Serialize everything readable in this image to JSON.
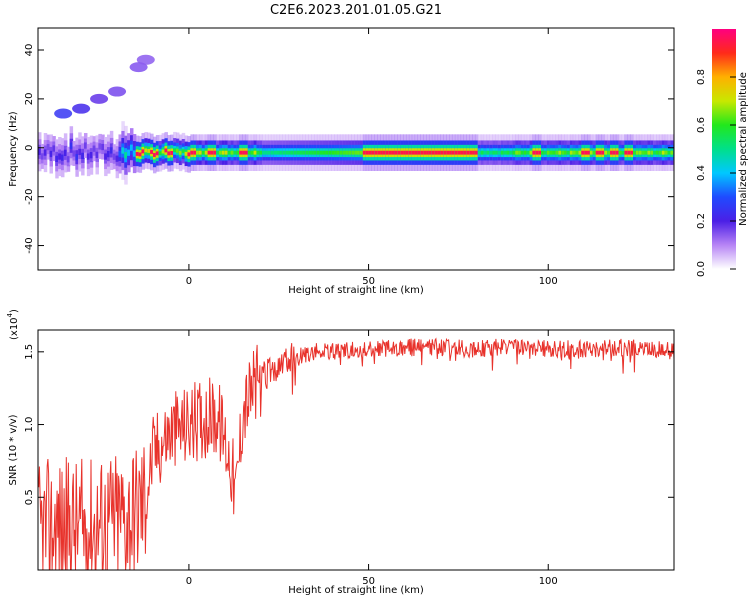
{
  "title": "C2E6.2023.201.01.05.G21",
  "colors": {
    "snr_line": "#e8322b",
    "axis": "#000000",
    "colorbar_stops": [
      "#ffffff",
      "#b784f5",
      "#4b1fe6",
      "#1f4bff",
      "#00c8ff",
      "#00e08a",
      "#22e81c",
      "#c8e800",
      "#ffb000",
      "#ff2a1a",
      "#ff0080"
    ]
  },
  "chart_data": [
    {
      "type": "heatmap",
      "panel": "spectrogram",
      "xlabel": "Height of straight line (km)",
      "ylabel": "Frequency (Hz)",
      "xlim": [
        -42,
        135
      ],
      "ylim": [
        -50,
        49
      ],
      "xticks": [
        0,
        50,
        100
      ],
      "yticks": [
        40,
        20,
        0,
        -20,
        -40
      ],
      "colorbar": {
        "label": "Normalized spectral amplitude",
        "range": [
          0.0,
          1.0
        ],
        "ticks": [
          "0.0",
          "0.2",
          "0.4",
          "0.6",
          "0.8"
        ]
      },
      "dominant_band": {
        "frequency_center_hz": -2,
        "peak_segment_km": [
          48,
          80
        ],
        "secondary_peaks_km": [
          -14,
          -10,
          -6,
          0,
          6,
          15,
          96,
          110,
          114,
          118,
          122
        ]
      },
      "scatter_blobs": [
        {
          "x": -35,
          "y": 14,
          "amp": 0.15
        },
        {
          "x": -30,
          "y": 16,
          "amp": 0.12
        },
        {
          "x": -25,
          "y": 20,
          "amp": 0.08
        },
        {
          "x": -20,
          "y": 23,
          "amp": 0.06
        },
        {
          "x": -14,
          "y": 33,
          "amp": 0.05
        },
        {
          "x": -12,
          "y": 36,
          "amp": 0.04
        }
      ]
    },
    {
      "type": "line",
      "panel": "snr",
      "xlabel": "Height of straight line (km)",
      "ylabel": "SNR (10 * v/v)",
      "scale_label": "(x10",
      "scale_exp": "4",
      "scale_close": ")",
      "xlim": [
        -42,
        135
      ],
      "ylim": [
        0,
        1.65
      ],
      "xticks": [
        0,
        50,
        100
      ],
      "yticks": [
        "1.5",
        "1.0",
        "0.5"
      ],
      "ytick_values": [
        1.5,
        1.0,
        0.5
      ],
      "series": [
        {
          "x": [
            -42,
            -35,
            -30,
            -25,
            -20,
            -15,
            -12,
            -10,
            -5,
            0,
            5,
            8,
            10,
            12,
            13,
            15,
            18,
            20,
            25,
            30,
            35,
            40,
            50,
            60,
            70,
            80,
            90,
            100,
            110,
            120,
            130,
            135
          ],
          "y": [
            0.25,
            0.3,
            0.28,
            0.32,
            0.35,
            0.4,
            0.5,
            0.8,
            0.95,
            1.0,
            1.05,
            1.05,
            0.9,
            0.7,
            0.5,
            1.1,
            1.25,
            1.3,
            1.4,
            1.46,
            1.5,
            1.5,
            1.52,
            1.53,
            1.53,
            1.52,
            1.54,
            1.52,
            1.52,
            1.53,
            1.52,
            1.5
          ]
        }
      ]
    }
  ]
}
